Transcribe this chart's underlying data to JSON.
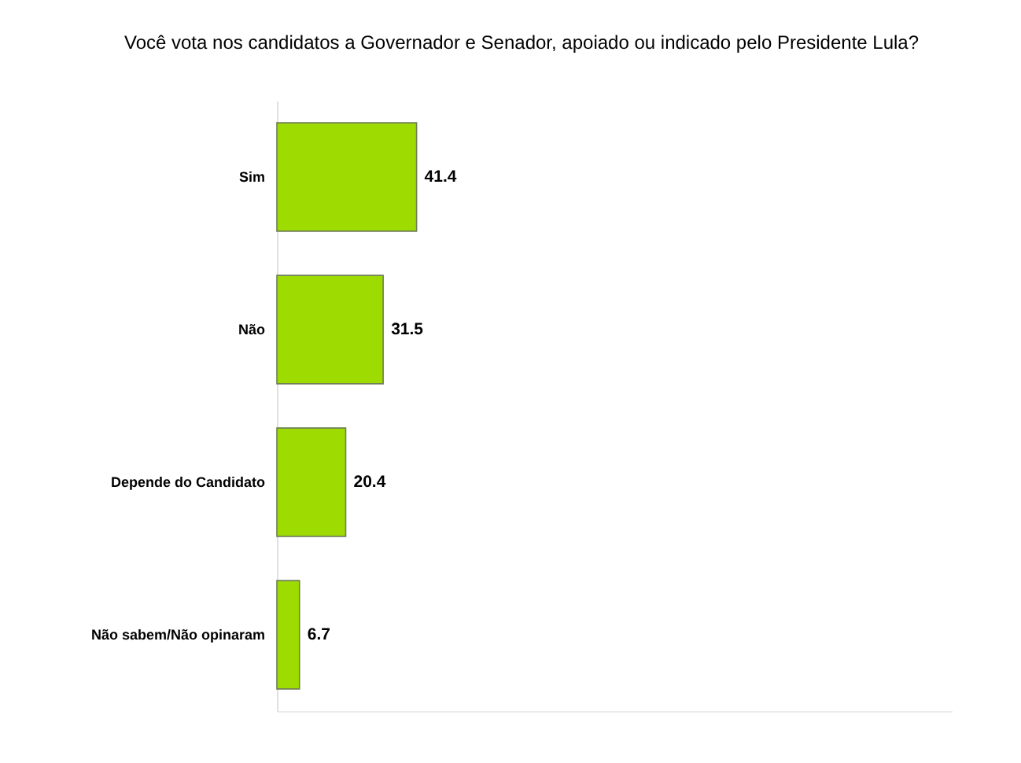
{
  "chart_data": {
    "type": "bar",
    "orientation": "horizontal",
    "title": "Você vota nos candidatos a Governador e Senador, apoiado ou indicado pelo Presidente Lula?",
    "categories": [
      "Sim",
      "Não",
      "Depende do Candidato",
      "Não sabem/Não opinaram"
    ],
    "values": [
      41.4,
      31.5,
      20.4,
      6.7
    ],
    "color": "#9edb00",
    "xlim": [
      0,
      200
    ],
    "data_labels": true,
    "tick_labels": "y"
  }
}
